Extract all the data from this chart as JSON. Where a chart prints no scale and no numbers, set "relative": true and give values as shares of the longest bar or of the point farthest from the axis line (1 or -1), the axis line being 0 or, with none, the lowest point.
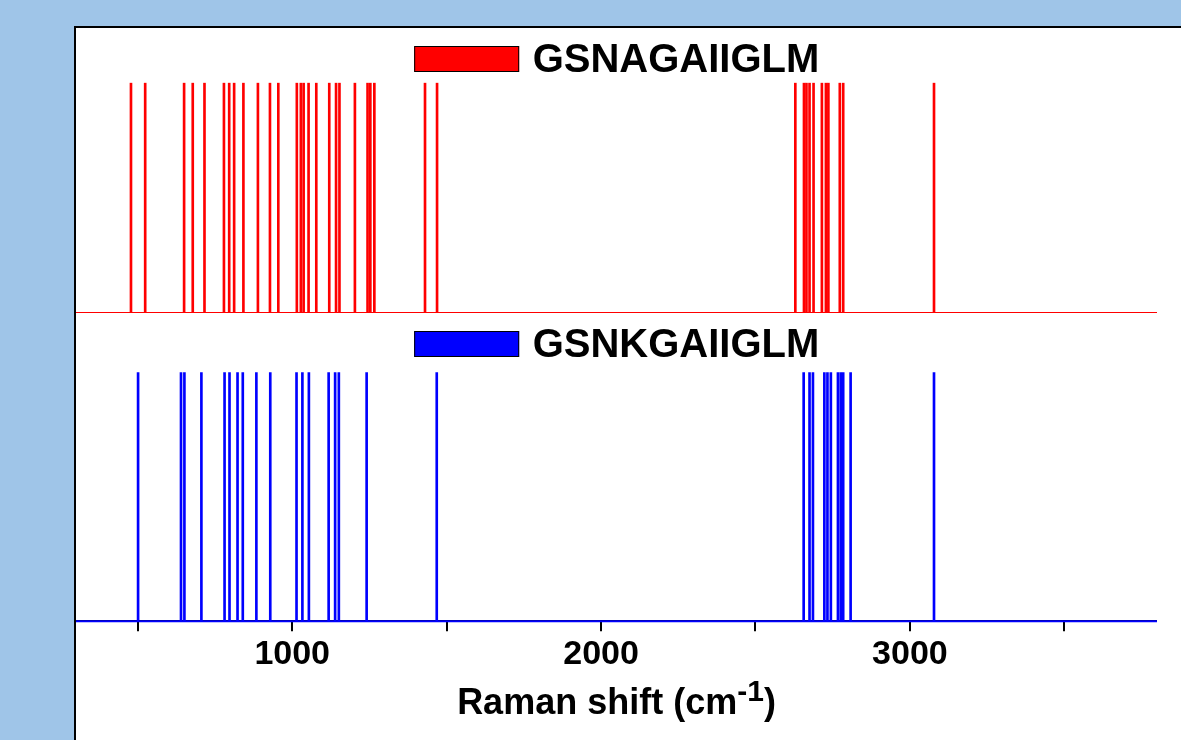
{
  "chart_data": [
    {
      "type": "bar",
      "relative": true,
      "xlim": [
        300,
        3800
      ],
      "tick_labels": false,
      "legend": "top",
      "series": [
        {
          "name": "GSNAGAIIGLM",
          "color": "#ff0000",
          "x": [
            478,
            524,
            650,
            678,
            716,
            779,
            796,
            812,
            842,
            889,
            928,
            955,
            1015,
            1028,
            1037,
            1053,
            1078,
            1120,
            1142,
            1153,
            1203,
            1244,
            1253,
            1266,
            1430,
            1469,
            2629,
            2657,
            2665,
            2675,
            2688,
            2715,
            2728,
            2736,
            2773,
            2784,
            3078
          ],
          "values": [
            1,
            1,
            1,
            1,
            1,
            1,
            1,
            1,
            1,
            1,
            1,
            1,
            1,
            1,
            1,
            1,
            1,
            1,
            1,
            1,
            1,
            1,
            1,
            1,
            1,
            1,
            1,
            1,
            1,
            1,
            1,
            1,
            1,
            1,
            1,
            1,
            1
          ]
        }
      ]
    },
    {
      "type": "bar",
      "relative": true,
      "xlim": [
        300,
        3800
      ],
      "xticks": [
        {
          "value": 500,
          "label": null
        },
        1000,
        {
          "value": 1500,
          "label": null
        },
        2000,
        {
          "value": 2500,
          "label": null
        },
        3000,
        {
          "value": 3500,
          "label": null
        }
      ],
      "tick_labels": "x",
      "legend": "top",
      "xlabel": "Raman shift (cm$^{-1}$)",
      "series": [
        {
          "name": "GSNKGAIIGLM",
          "color": "#0000ff",
          "x": [
            501,
            640,
            651,
            706,
            781,
            797,
            823,
            840,
            884,
            929,
            1014,
            1033,
            1054,
            1118,
            1139,
            1151,
            1241,
            1468,
            2656,
            2675,
            2686,
            2723,
            2733,
            2744,
            2767,
            2776,
            2784,
            2808,
            3078
          ],
          "values": [
            1,
            1,
            1,
            1,
            1,
            1,
            1,
            1,
            1,
            1,
            1,
            1,
            1,
            1,
            1,
            1,
            1,
            1,
            1,
            1,
            1,
            1,
            1,
            1,
            1,
            1,
            1,
            1,
            1
          ]
        }
      ]
    }
  ]
}
